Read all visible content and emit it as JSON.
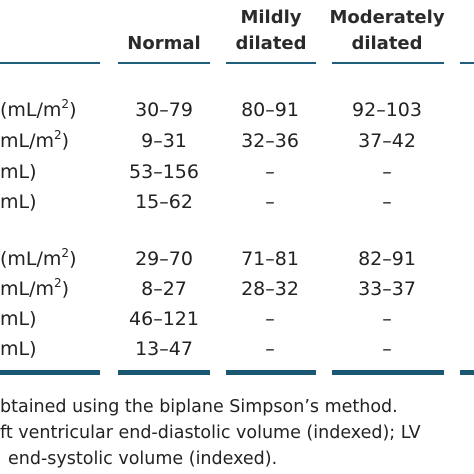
{
  "headers": {
    "normal": "Normal",
    "mild_line1": "Mildly",
    "mild_line2": "dilated",
    "moderate_line1": "Moderately",
    "moderate_line2": "dilated"
  },
  "group1": [
    {
      "label": "(mL/m",
      "label_sup": "2",
      "label_end": ")",
      "normal": "30–79",
      "mild": "80–91",
      "moderate": "92–103"
    },
    {
      "label": " mL/m",
      "label_sup": "2",
      "label_end": ")",
      "normal": "9–31",
      "mild": "32–36",
      "moderate": "37–42"
    },
    {
      "label": "mL)",
      "label_sup": "",
      "label_end": "",
      "normal": "53–156",
      "mild": "–",
      "moderate": "–"
    },
    {
      "label": "mL)",
      "label_sup": "",
      "label_end": "",
      "normal": "15–62",
      "mild": "–",
      "moderate": "–"
    }
  ],
  "group2": [
    {
      "label": "(mL/m",
      "label_sup": "2",
      "label_end": ")",
      "normal": "29–70",
      "mild": "71–81",
      "moderate": "82–91"
    },
    {
      "label": " mL/m",
      "label_sup": "2",
      "label_end": ")",
      "normal": "8–27",
      "mild": "28–32",
      "moderate": "33–37"
    },
    {
      "label": "mL)",
      "label_sup": "",
      "label_end": "",
      "normal": "46–121",
      "mild": "–",
      "moderate": "–"
    },
    {
      "label": "mL)",
      "label_sup": "",
      "label_end": "",
      "normal": "13–47",
      "mild": "–",
      "moderate": "–"
    }
  ],
  "footnotes": [
    "btained using the biplane Simpson’s method.",
    "ft ventricular end-diastolic volume (indexed); LV",
    "end-systolic volume (indexed)."
  ],
  "colors": {
    "rule": "#1f5f7a",
    "text": "#222222"
  }
}
